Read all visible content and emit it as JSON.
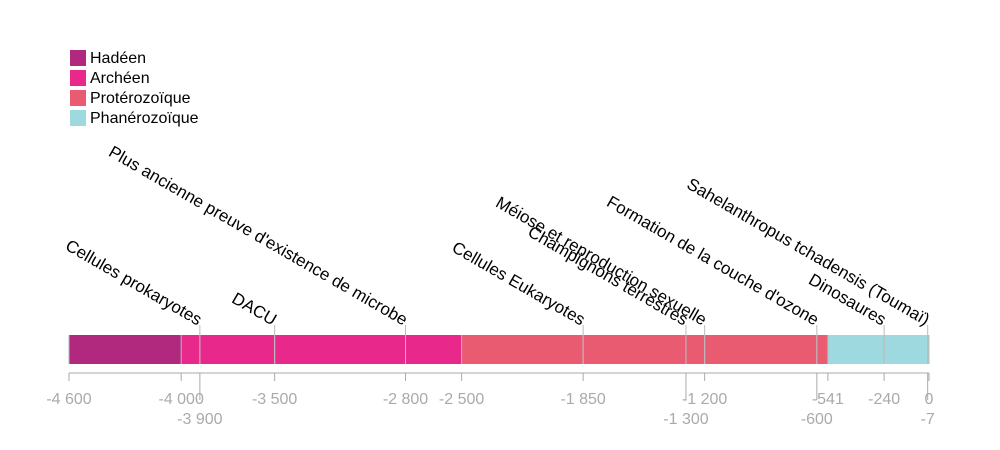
{
  "chart_data": {
    "type": "timeline",
    "eras": [
      {
        "name": "Hadéen",
        "start": -4600,
        "end": -4000,
        "color": "#b1287f"
      },
      {
        "name": "Archéen",
        "start": -4000,
        "end": -2500,
        "color": "#e8288a"
      },
      {
        "name": "Protérozoïque",
        "start": -2500,
        "end": -541,
        "color": "#e85b70"
      },
      {
        "name": "Phanérozoïque",
        "start": -541,
        "end": 0,
        "color": "#9dd9df"
      }
    ],
    "events": [
      {
        "label": "Cellules prokaryotes",
        "value": -3900
      },
      {
        "label": "DACU",
        "value": -3500
      },
      {
        "label": "Plus ancienne preuve d'existence de microbe",
        "value": -2800
      },
      {
        "label": "Cellules Eukaryotes",
        "value": -1850
      },
      {
        "label": "Champignons terrestres",
        "value": -1300
      },
      {
        "label": "Méiose et reproduction sexuelle",
        "value": -1200
      },
      {
        "label": "Formation de la couche d'ozone",
        "value": -600
      },
      {
        "label": "Dinosaures",
        "value": -240
      },
      {
        "label": "Sahelanthropus tchadensis (Toumaï)",
        "value": -7
      }
    ],
    "xlim": [
      -4600,
      0
    ],
    "xticks": [
      {
        "value": -4600,
        "label": "-4 600"
      },
      {
        "value": -4000,
        "label": "-4 000"
      },
      {
        "value": -3500,
        "label": "-3 500"
      },
      {
        "value": -2800,
        "label": "-2 800"
      },
      {
        "value": -2500,
        "label": "-2 500"
      },
      {
        "value": -1850,
        "label": "-1 850"
      },
      {
        "value": -1200,
        "label": "-1 200"
      },
      -541,
      -240,
      0,
      {
        "value": -3900,
        "label": "-3 900"
      },
      {
        "value": -1300,
        "label": "-1 300"
      },
      -600,
      -7
    ]
  }
}
